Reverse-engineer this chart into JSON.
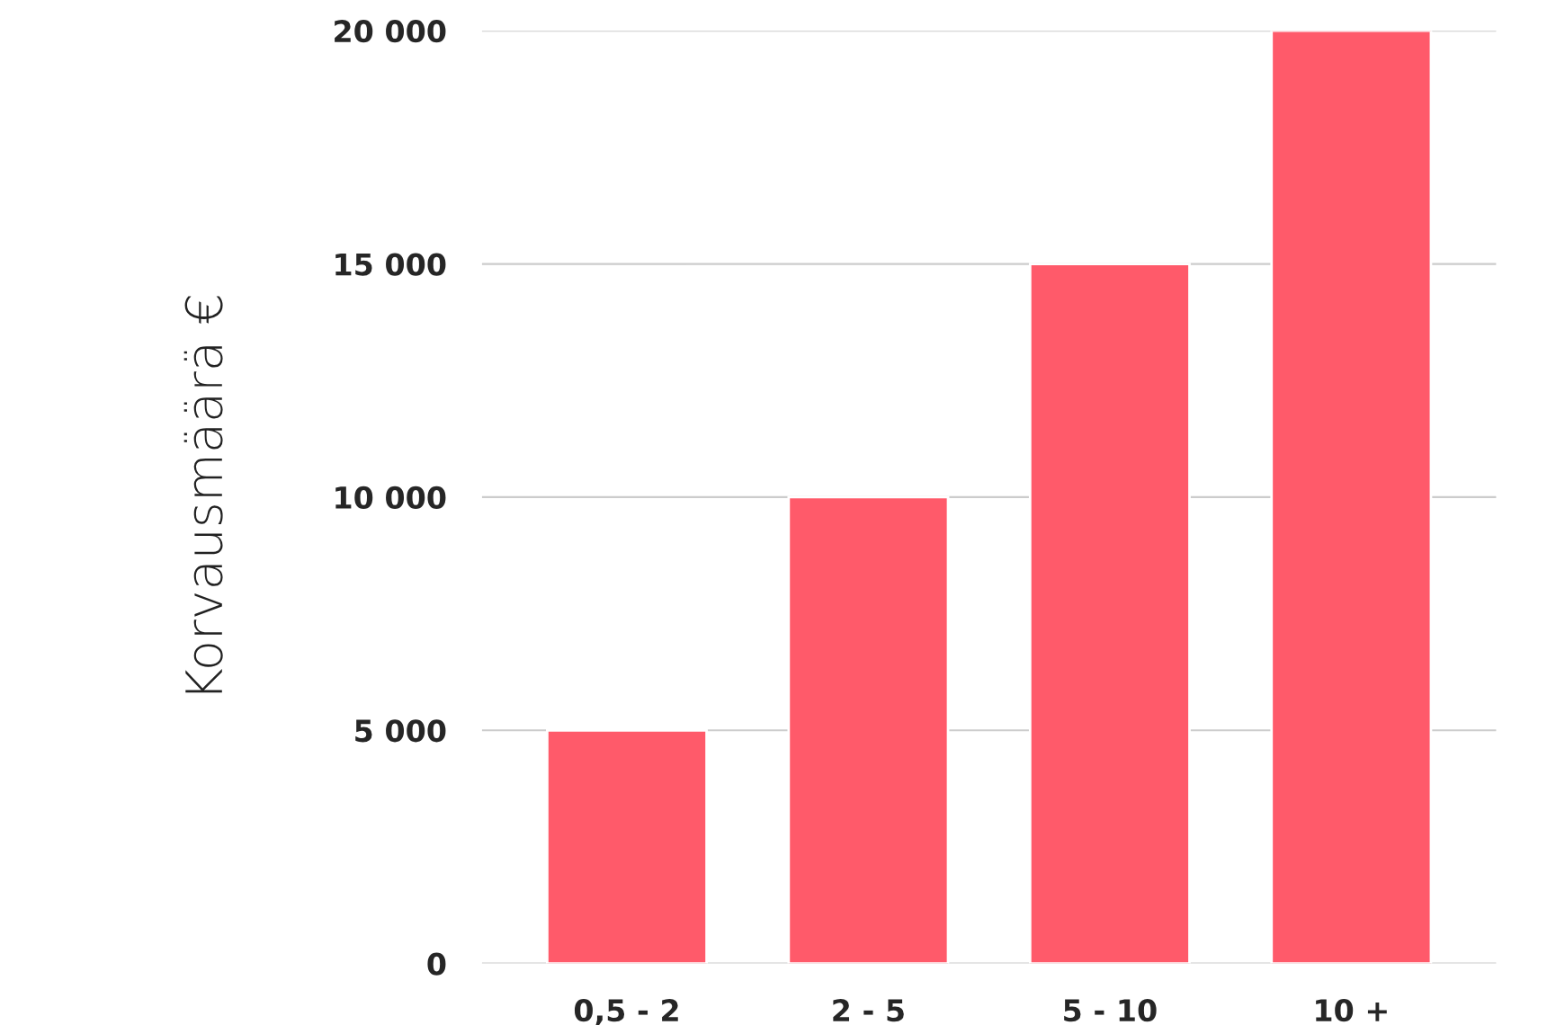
{
  "chart_data": {
    "type": "bar",
    "ylabel": "Korvausmäärä €",
    "categories": [
      "0,5 - 2",
      "2 - 5",
      "5 - 10",
      "10 +"
    ],
    "values": [
      5000,
      10000,
      15000,
      20000
    ],
    "color": "#ff5a6a",
    "ylim": [
      0,
      20000
    ],
    "yticks": [
      0,
      {
        "value": 5000,
        "label": "5 000"
      },
      {
        "value": 10000,
        "label": "10 000"
      },
      {
        "value": 15000,
        "label": "15 000"
      },
      {
        "value": 20000,
        "label": "20 000"
      }
    ],
    "grid": "y"
  }
}
